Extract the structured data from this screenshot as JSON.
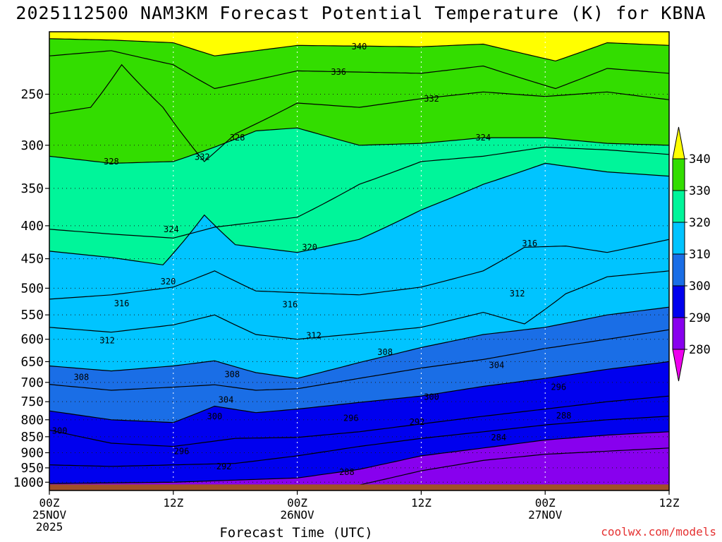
{
  "title": "2025112500 NAM3KM Forecast Potential Temperature (K) for KBNA",
  "credit": "coolwx.com/models",
  "xaxis_title": "Forecast Time (UTC)",
  "chart_data": {
    "type": "heatmap",
    "title": "2025112500 NAM3KM Forecast Potential Temperature (K) for KBNA",
    "xlabel": "Forecast Time (UTC)",
    "ylabel": "",
    "y_scale": "log (pressure, hPa)",
    "ylim": [
      200,
      1030
    ],
    "xlim_hours": [
      0,
      60
    ],
    "y_ticks": [
      250,
      300,
      350,
      400,
      450,
      500,
      550,
      600,
      650,
      700,
      750,
      800,
      850,
      900,
      950,
      1000
    ],
    "x_ticks": [
      {
        "hour": 0,
        "lines": [
          "00Z",
          "25NOV",
          "2025"
        ]
      },
      {
        "hour": 12,
        "lines": [
          "12Z"
        ]
      },
      {
        "hour": 24,
        "lines": [
          "00Z",
          "26NOV"
        ]
      },
      {
        "hour": 36,
        "lines": [
          "12Z"
        ]
      },
      {
        "hour": 48,
        "lines": [
          "00Z",
          "27NOV"
        ]
      },
      {
        "hour": 60,
        "lines": [
          "12Z"
        ]
      }
    ],
    "grid": true,
    "colorbar": {
      "placement": "right",
      "ticks": [
        "340",
        "330",
        "320",
        "310",
        "300",
        "290",
        "280"
      ],
      "bins": [
        {
          "from": 340,
          "to": 350,
          "color": "#ffff00"
        },
        {
          "from": 330,
          "to": 340,
          "color": "#33dd00"
        },
        {
          "from": 320,
          "to": 330,
          "color": "#00f59a"
        },
        {
          "from": 310,
          "to": 320,
          "color": "#00c4ff"
        },
        {
          "from": 300,
          "to": 310,
          "color": "#1a6ee6"
        },
        {
          "from": 290,
          "to": 300,
          "color": "#0000ee"
        },
        {
          "from": 280,
          "to": 290,
          "color": "#8800ee"
        },
        {
          "from": 270,
          "to": 280,
          "color": "#ee00ee"
        }
      ]
    },
    "isentropes": [
      {
        "theta": 340,
        "p": [
          [
            0,
            205
          ],
          [
            6,
            206
          ],
          [
            12,
            208
          ],
          [
            16,
            218
          ],
          [
            24,
            210
          ],
          [
            36,
            211
          ],
          [
            42,
            209
          ],
          [
            49,
            222
          ],
          [
            54,
            208
          ],
          [
            60,
            210
          ]
        ]
      },
      {
        "theta": 336,
        "p": [
          [
            0,
            218
          ],
          [
            6,
            214
          ],
          [
            12,
            225
          ],
          [
            16,
            245
          ],
          [
            24,
            230
          ],
          [
            36,
            232
          ],
          [
            42,
            226
          ],
          [
            49,
            245
          ],
          [
            54,
            228
          ],
          [
            60,
            232
          ]
        ]
      },
      {
        "theta": 332,
        "p": [
          [
            0,
            268
          ],
          [
            4,
            262
          ],
          [
            7,
            225
          ],
          [
            11,
            262
          ],
          [
            15,
            318
          ],
          [
            18,
            288
          ],
          [
            24,
            258
          ],
          [
            30,
            262
          ],
          [
            36,
            254
          ],
          [
            42,
            248
          ],
          [
            48,
            252
          ],
          [
            54,
            248
          ],
          [
            60,
            255
          ]
        ]
      },
      {
        "theta": 328,
        "p": [
          [
            0,
            312
          ],
          [
            6,
            320
          ],
          [
            12,
            318
          ],
          [
            16,
            302
          ],
          [
            20,
            285
          ],
          [
            24,
            282
          ],
          [
            30,
            300
          ],
          [
            36,
            298
          ],
          [
            42,
            292
          ],
          [
            48,
            292
          ],
          [
            54,
            298
          ],
          [
            60,
            300
          ]
        ]
      },
      {
        "theta": 324,
        "p": [
          [
            0,
            405
          ],
          [
            6,
            412
          ],
          [
            12,
            418
          ],
          [
            16,
            402
          ],
          [
            24,
            388
          ],
          [
            30,
            345
          ],
          [
            36,
            318
          ],
          [
            42,
            312
          ],
          [
            48,
            302
          ],
          [
            54,
            305
          ],
          [
            60,
            310
          ]
        ]
      },
      {
        "theta": 320,
        "p": [
          [
            0,
            438
          ],
          [
            6,
            448
          ],
          [
            11,
            460
          ],
          [
            15,
            385
          ],
          [
            18,
            428
          ],
          [
            24,
            440
          ],
          [
            30,
            420
          ],
          [
            36,
            378
          ],
          [
            42,
            345
          ],
          [
            48,
            320
          ],
          [
            54,
            330
          ],
          [
            60,
            335
          ]
        ]
      },
      {
        "theta": 316,
        "p": [
          [
            0,
            520
          ],
          [
            6,
            512
          ],
          [
            12,
            498
          ],
          [
            16,
            470
          ],
          [
            20,
            505
          ],
          [
            24,
            508
          ],
          [
            30,
            512
          ],
          [
            36,
            498
          ],
          [
            42,
            470
          ],
          [
            46,
            432
          ],
          [
            50,
            430
          ],
          [
            54,
            440
          ],
          [
            60,
            420
          ]
        ]
      },
      {
        "theta": 312,
        "p": [
          [
            0,
            575
          ],
          [
            6,
            585
          ],
          [
            12,
            570
          ],
          [
            16,
            550
          ],
          [
            20,
            590
          ],
          [
            24,
            600
          ],
          [
            30,
            588
          ],
          [
            36,
            575
          ],
          [
            42,
            545
          ],
          [
            46,
            568
          ],
          [
            50,
            510
          ],
          [
            54,
            480
          ],
          [
            60,
            470
          ]
        ]
      },
      {
        "theta": 308,
        "p": [
          [
            0,
            660
          ],
          [
            6,
            672
          ],
          [
            12,
            660
          ],
          [
            16,
            648
          ],
          [
            20,
            676
          ],
          [
            24,
            690
          ],
          [
            30,
            652
          ],
          [
            36,
            618
          ],
          [
            42,
            590
          ],
          [
            48,
            575
          ],
          [
            54,
            550
          ],
          [
            60,
            535
          ]
        ]
      },
      {
        "theta": 304,
        "p": [
          [
            0,
            705
          ],
          [
            6,
            720
          ],
          [
            12,
            712
          ],
          [
            16,
            706
          ],
          [
            20,
            720
          ],
          [
            24,
            716
          ],
          [
            30,
            690
          ],
          [
            36,
            665
          ],
          [
            42,
            645
          ],
          [
            48,
            620
          ],
          [
            54,
            600
          ],
          [
            60,
            580
          ]
        ]
      },
      {
        "theta": 300,
        "p": [
          [
            0,
            775
          ],
          [
            6,
            800
          ],
          [
            12,
            808
          ],
          [
            16,
            762
          ],
          [
            20,
            780
          ],
          [
            24,
            770
          ],
          [
            30,
            752
          ],
          [
            36,
            735
          ],
          [
            42,
            710
          ],
          [
            48,
            690
          ],
          [
            54,
            668
          ],
          [
            60,
            650
          ]
        ]
      },
      {
        "theta": 296,
        "p": [
          [
            0,
            830
          ],
          [
            6,
            870
          ],
          [
            12,
            880
          ],
          [
            18,
            855
          ],
          [
            24,
            852
          ],
          [
            30,
            835
          ],
          [
            36,
            812
          ],
          [
            42,
            790
          ],
          [
            48,
            770
          ],
          [
            54,
            750
          ],
          [
            60,
            735
          ]
        ]
      },
      {
        "theta": 292,
        "p": [
          [
            0,
            940
          ],
          [
            6,
            945
          ],
          [
            12,
            940
          ],
          [
            18,
            935
          ],
          [
            24,
            910
          ],
          [
            30,
            880
          ],
          [
            36,
            855
          ],
          [
            42,
            835
          ],
          [
            48,
            815
          ],
          [
            54,
            800
          ],
          [
            60,
            790
          ]
        ]
      },
      {
        "theta": 288,
        "p": [
          [
            0,
            1005
          ],
          [
            12,
            1000
          ],
          [
            24,
            985
          ],
          [
            30,
            955
          ],
          [
            36,
            910
          ],
          [
            42,
            885
          ],
          [
            48,
            860
          ],
          [
            54,
            845
          ],
          [
            60,
            835
          ]
        ]
      },
      {
        "theta": 284,
        "p": [
          [
            0,
            1030
          ],
          [
            24,
            1030
          ],
          [
            30,
            1010
          ],
          [
            36,
            960
          ],
          [
            42,
            925
          ],
          [
            48,
            905
          ],
          [
            54,
            895
          ],
          [
            60,
            885
          ]
        ]
      }
    ],
    "contour_labels": [
      {
        "text": "340",
        "hour": 30.0,
        "p": 211
      },
      {
        "text": "336",
        "hour": 28.0,
        "p": 231
      },
      {
        "text": "332",
        "hour": 37.0,
        "p": 254
      },
      {
        "text": "332",
        "hour": 14.8,
        "p": 313
      },
      {
        "text": "328",
        "hour": 18.2,
        "p": 292
      },
      {
        "text": "328",
        "hour": 6.0,
        "p": 318
      },
      {
        "text": "324",
        "hour": 42.0,
        "p": 292
      },
      {
        "text": "324",
        "hour": 11.8,
        "p": 405
      },
      {
        "text": "320",
        "hour": 25.2,
        "p": 432
      },
      {
        "text": "320",
        "hour": 11.5,
        "p": 488
      },
      {
        "text": "316",
        "hour": 46.5,
        "p": 426
      },
      {
        "text": "316",
        "hour": 7.0,
        "p": 528
      },
      {
        "text": "316",
        "hour": 23.3,
        "p": 530
      },
      {
        "text": "312",
        "hour": 45.3,
        "p": 510
      },
      {
        "text": "312",
        "hour": 25.6,
        "p": 592
      },
      {
        "text": "312",
        "hour": 5.6,
        "p": 603
      },
      {
        "text": "308",
        "hour": 32.5,
        "p": 628
      },
      {
        "text": "308",
        "hour": 3.1,
        "p": 687
      },
      {
        "text": "308",
        "hour": 17.7,
        "p": 680
      },
      {
        "text": "304",
        "hour": 43.3,
        "p": 658
      },
      {
        "text": "304",
        "hour": 17.1,
        "p": 745
      },
      {
        "text": "300",
        "hour": 37.0,
        "p": 737
      },
      {
        "text": "300",
        "hour": 16.0,
        "p": 790
      },
      {
        "text": "300",
        "hour": 1.0,
        "p": 832
      },
      {
        "text": "296",
        "hour": 49.3,
        "p": 712
      },
      {
        "text": "296",
        "hour": 29.2,
        "p": 795
      },
      {
        "text": "296",
        "hour": 12.8,
        "p": 895
      },
      {
        "text": "292",
        "hour": 35.6,
        "p": 807
      },
      {
        "text": "292",
        "hour": 16.9,
        "p": 945
      },
      {
        "text": "288",
        "hour": 49.8,
        "p": 788
      },
      {
        "text": "288",
        "hour": 28.8,
        "p": 965
      },
      {
        "text": "284",
        "hour": 43.5,
        "p": 852
      }
    ],
    "terrain": {
      "p_top": 1008,
      "color": "#a05028"
    }
  }
}
